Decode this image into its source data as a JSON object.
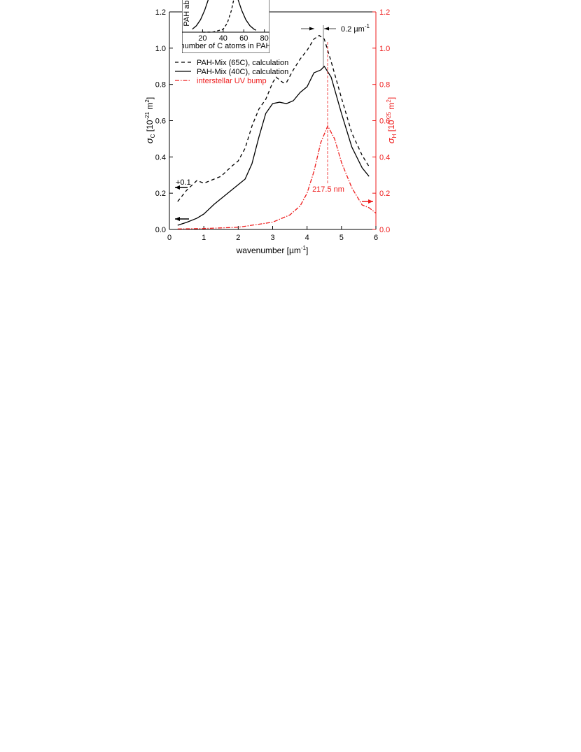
{
  "chart_data": [
    {
      "type": "line",
      "x_label": {
        "text": "wavenumber [µm",
        "exp": "-1",
        "close": "]"
      },
      "y_label": {
        "symbol": "σ",
        "sub": "C",
        "text": " [10",
        "exp": "-21",
        "unit": " m",
        "exp2": "2",
        "close": "]"
      },
      "y2_label": {
        "symbol": "σ",
        "sub": "H",
        "text": " [10",
        "exp": "-25",
        "unit": " m",
        "exp2": "2",
        "close": "]"
      },
      "xlim": [
        0,
        6
      ],
      "xticks": [
        0,
        1,
        2,
        3,
        4,
        5,
        6
      ],
      "ylim": [
        0,
        1.2
      ],
      "yticks": [
        {
          "value": 0,
          "label": "0.0"
        },
        0.2,
        0.4,
        0.6,
        0.8,
        {
          "value": 1,
          "label": "1.0"
        },
        1.2
      ],
      "y2lim": [
        0,
        1.2
      ],
      "y2ticks": [
        {
          "value": 0,
          "label": "0.0"
        },
        0.2,
        0.4,
        0.6,
        0.8,
        {
          "value": 1,
          "label": "1.0"
        },
        1.2
      ],
      "y2_color": "#ee1c1c",
      "series": [
        {
          "name": "PAH-Mix (65C), calculation",
          "color": "#000000",
          "dash": "5,4",
          "x": [
            0.24,
            0.5,
            0.8,
            1.0,
            1.2,
            1.5,
            1.8,
            2.0,
            2.2,
            2.4,
            2.6,
            2.8,
            3.0,
            3.1,
            3.3,
            3.4,
            3.6,
            3.8,
            4.0,
            4.2,
            4.35,
            4.5,
            4.7,
            5.0,
            5.3,
            5.6,
            5.8
          ],
          "values": [
            0.154,
            0.216,
            0.27,
            0.255,
            0.27,
            0.293,
            0.347,
            0.378,
            0.448,
            0.571,
            0.664,
            0.718,
            0.81,
            0.84,
            0.81,
            0.81,
            0.88,
            0.94,
            0.988,
            1.05,
            1.07,
            1.05,
            0.926,
            0.725,
            0.532,
            0.409,
            0.347
          ]
        },
        {
          "name": "PAH-Mix (40C), calculation",
          "color": "#000000",
          "dash": "none",
          "x": [
            0.24,
            0.5,
            0.8,
            1.0,
            1.3,
            1.6,
            1.8,
            2.0,
            2.2,
            2.4,
            2.6,
            2.8,
            3.0,
            3.2,
            3.4,
            3.6,
            3.8,
            4.0,
            4.2,
            4.4,
            4.5,
            4.7,
            5.0,
            5.3,
            5.6,
            5.8
          ],
          "values": [
            0.023,
            0.039,
            0.062,
            0.085,
            0.139,
            0.185,
            0.216,
            0.247,
            0.278,
            0.363,
            0.509,
            0.64,
            0.694,
            0.702,
            0.694,
            0.71,
            0.756,
            0.787,
            0.864,
            0.88,
            0.9,
            0.84,
            0.64,
            0.455,
            0.34,
            0.293
          ]
        },
        {
          "name": "interstellar UV bump",
          "color": "#ee1c1c",
          "dash": "6,2,1.5,2",
          "axis": "y2",
          "x": [
            0.24,
            1.0,
            2.0,
            3.0,
            3.5,
            3.8,
            4.0,
            4.2,
            4.4,
            4.6,
            4.8,
            5.0,
            5.3,
            5.6,
            5.8,
            6.0
          ],
          "values": [
            0.003,
            0.005,
            0.012,
            0.04,
            0.08,
            0.13,
            0.2,
            0.32,
            0.48,
            0.571,
            0.5,
            0.37,
            0.23,
            0.135,
            0.12,
            0.09
          ]
        }
      ],
      "annotations": {
        "offset": "+0.1",
        "peak": "217.5 nm",
        "shift": {
          "text": "0.2 µm",
          "exp": "-1"
        }
      }
    },
    {
      "type": "line",
      "x_label": "number of C atoms in PAH",
      "y_label": "PAH abundance",
      "xlim": [
        0,
        85
      ],
      "xticks": [
        20,
        40,
        60,
        80
      ],
      "ylim": [
        0,
        1
      ],
      "series": [
        {
          "color": "#000000",
          "dash": "none",
          "x": [
            10,
            14,
            18,
            22,
            26,
            30,
            34,
            38,
            40,
            42,
            46,
            50,
            54,
            58,
            62,
            66,
            70,
            72
          ],
          "values": [
            0.044,
            0.096,
            0.186,
            0.325,
            0.506,
            0.707,
            0.882,
            0.986,
            1,
            0.986,
            0.882,
            0.707,
            0.506,
            0.325,
            0.186,
            0.096,
            0.044,
            0.029
          ]
        },
        {
          "color": "#000000",
          "dash": "4,3",
          "x": [
            20,
            30,
            40,
            44,
            48,
            52,
            56,
            60
          ],
          "values": [
            0,
            0.001,
            0.044,
            0.135,
            0.325,
            0.607,
            0.882,
            1
          ]
        }
      ]
    }
  ]
}
